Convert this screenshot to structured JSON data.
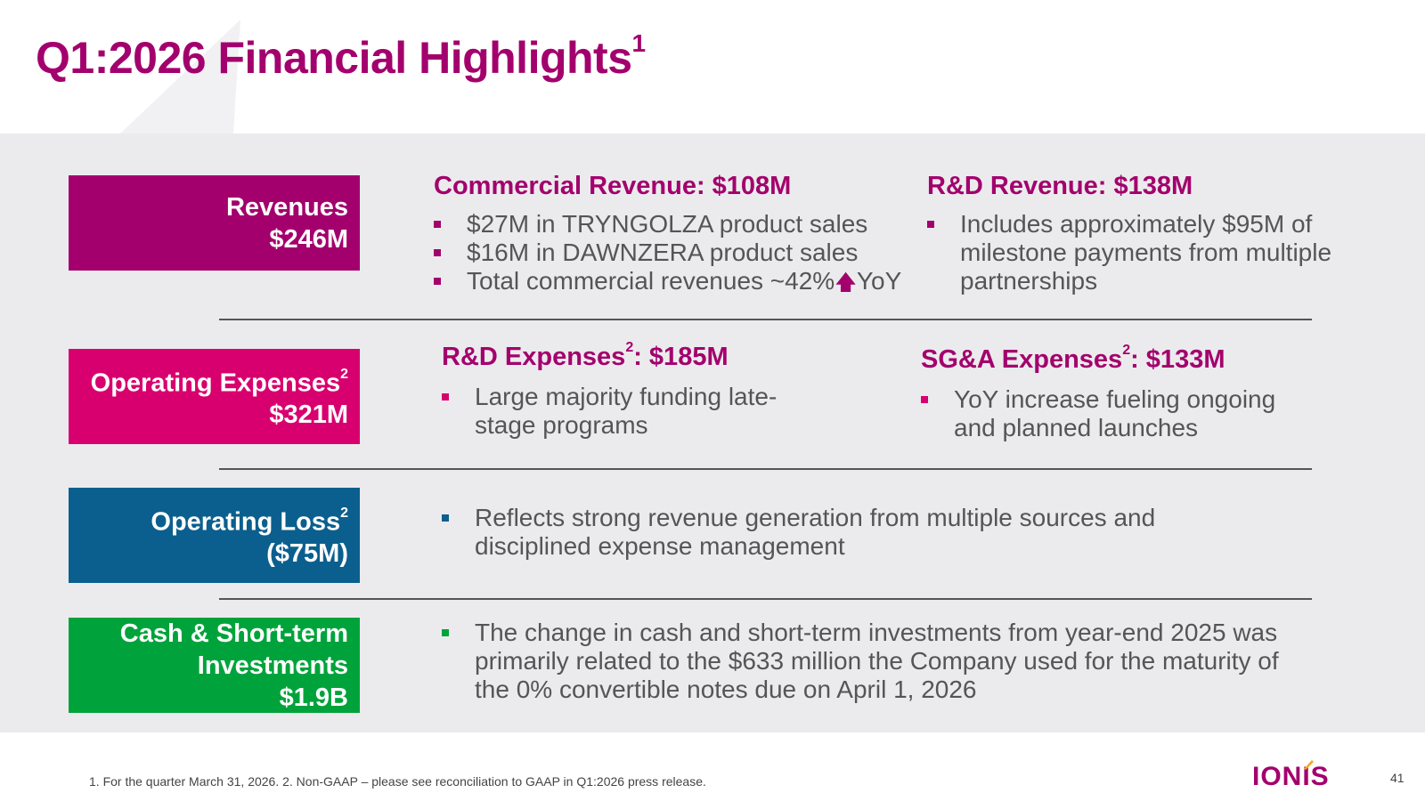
{
  "title": {
    "text": "Q1:2026 Financial Highlights",
    "sup": "1"
  },
  "revenues": {
    "label": "Revenues",
    "value": "$246M",
    "commercial": {
      "heading": "Commercial Revenue: $108M",
      "bullets": [
        "$27M in TRYNGOLZA product sales",
        "$16M in DAWNZERA product sales",
        "Total commercial revenues ~42%"
      ],
      "yoy_suffix": "YoY"
    },
    "rd": {
      "heading": "R&D Revenue: $138M",
      "bullets": [
        "Includes approximately $95M of milestone payments from multiple partnerships"
      ]
    }
  },
  "opex": {
    "label": "Operating Expenses",
    "sup": "2",
    "value": "$321M",
    "rd": {
      "heading_pre": "R&D Expenses",
      "sup": "2",
      "heading_post": ": $185M",
      "bullets": [
        "Large majority funding late-stage programs"
      ]
    },
    "sga": {
      "heading_pre": "SG&A Expenses",
      "sup": "2",
      "heading_post": ": $133M",
      "bullets": [
        "YoY increase fueling ongoing and planned launches"
      ]
    }
  },
  "oploss": {
    "label": "Operating Loss",
    "sup": "2",
    "value": "($75M)",
    "bullets": [
      "Reflects strong revenue generation from multiple sources and disciplined expense management"
    ]
  },
  "cash": {
    "label_line1": "Cash & Short-term",
    "label_line2": "Investments",
    "value": "$1.9B",
    "bullets": [
      "The change in cash and short-term investments from year-end 2025 was primarily related to the $633 million the Company used for the maturity of the 0% convertible notes due on April 1, 2026"
    ]
  },
  "footnote": "1. For the quarter March 31, 2026. 2. Non-GAAP – please see reconciliation to GAAP in Q1:2026 press release.",
  "logo": "IONIS",
  "page_number": "41",
  "colors": {
    "brand_purple": "#a3006d",
    "magenta": "#d8006f",
    "blue": "#0b5f8e",
    "green": "#00a33b"
  }
}
